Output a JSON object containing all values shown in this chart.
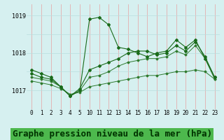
{
  "background_color": "#d6f0f0",
  "grid_color_v": "#e8a0a0",
  "grid_color_h": "#b8dede",
  "line_color": "#1a6b1a",
  "line_color2": "#2d7a2d",
  "title": "Graphe pression niveau de la mer (hPa)",
  "ylabel_values": [
    1017,
    1018,
    1019
  ],
  "xtick_positions": [
    0,
    1,
    2,
    3,
    4,
    5,
    6,
    7,
    8,
    9,
    10,
    11,
    12,
    13,
    14,
    15,
    16,
    17,
    18,
    19
  ],
  "xtick_labels": [
    "0",
    "1",
    "2",
    "3",
    "4",
    "5",
    "10",
    "11",
    "12",
    "13",
    "14",
    "15",
    "16",
    "17",
    "18",
    "19",
    "20",
    "21",
    "22",
    "23"
  ],
  "series1_x": [
    0,
    1,
    2,
    3,
    4,
    5,
    6,
    7,
    8,
    9,
    10,
    11,
    12,
    13,
    14,
    15,
    16,
    17,
    18,
    19
  ],
  "series1_y": [
    1017.55,
    1017.45,
    1017.35,
    1017.1,
    1016.85,
    1017.0,
    1018.9,
    1018.95,
    1018.75,
    1018.15,
    1018.1,
    1018.0,
    1017.9,
    1018.0,
    1018.05,
    1018.35,
    1018.15,
    1018.35,
    1017.85,
    1017.35
  ],
  "series2_x": [
    0,
    1,
    2,
    3,
    4,
    5,
    6,
    7,
    8,
    9,
    10,
    11,
    12,
    13,
    14,
    15,
    16,
    17,
    18,
    19
  ],
  "series2_y": [
    1017.45,
    1017.35,
    1017.3,
    1017.1,
    1016.85,
    1017.05,
    1017.55,
    1017.65,
    1017.75,
    1017.85,
    1018.0,
    1018.05,
    1018.05,
    1017.95,
    1018.0,
    1018.2,
    1018.05,
    1018.3,
    1017.9,
    1017.35
  ],
  "series3_x": [
    0,
    1,
    2,
    3,
    4,
    5,
    6,
    7,
    8,
    9,
    10,
    11,
    12,
    13,
    14,
    15,
    16,
    17,
    18,
    19
  ],
  "series3_y": [
    1017.35,
    1017.3,
    1017.25,
    1017.1,
    1016.85,
    1017.0,
    1017.35,
    1017.4,
    1017.5,
    1017.65,
    1017.75,
    1017.8,
    1017.85,
    1017.85,
    1017.9,
    1018.05,
    1017.95,
    1018.2,
    1017.85,
    1017.3
  ],
  "series4_x": [
    0,
    1,
    2,
    3,
    4,
    5,
    6,
    7,
    8,
    9,
    10,
    11,
    12,
    13,
    14,
    15,
    16,
    17,
    18,
    19
  ],
  "series4_y": [
    1017.25,
    1017.2,
    1017.15,
    1017.05,
    1016.9,
    1016.95,
    1017.1,
    1017.15,
    1017.2,
    1017.25,
    1017.3,
    1017.35,
    1017.4,
    1017.4,
    1017.45,
    1017.5,
    1017.5,
    1017.55,
    1017.5,
    1017.3
  ],
  "ylim": [
    1016.5,
    1019.3
  ],
  "title_fontsize": 9,
  "title_color": "#003300",
  "title_bg": "#4db84d"
}
